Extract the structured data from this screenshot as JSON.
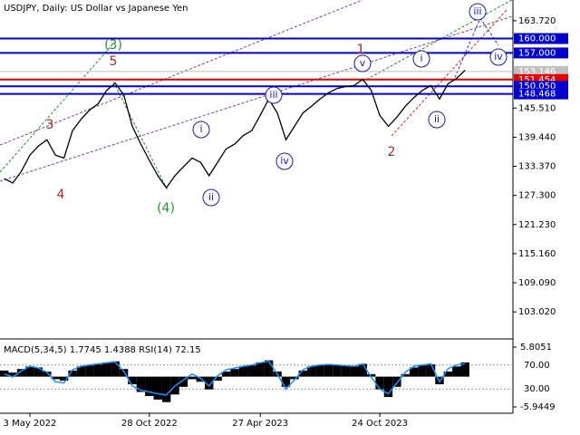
{
  "chart_data": [
    {
      "type": "line",
      "title": "USDJPY, Daily:  US Dollar vs Japanese Yen",
      "color": "#000000",
      "categories": [
        null,
        null,
        null,
        "3 May 2022",
        null,
        null,
        null,
        null,
        null,
        null,
        null,
        null,
        null,
        null,
        null,
        null,
        null,
        "28 Oct 2022",
        null,
        null,
        null,
        null,
        null,
        null,
        null,
        null,
        null,
        null,
        null,
        null,
        "27 Apr 2023",
        null,
        null,
        null,
        null,
        null,
        null,
        null,
        null,
        null,
        null,
        null,
        null,
        null,
        "24 Oct 2023",
        null,
        null,
        null,
        null,
        null,
        null,
        null,
        null,
        null,
        null,
        null,
        null,
        null,
        null,
        null
      ],
      "values": [
        130.8,
        129.9,
        132.3,
        135.7,
        137.6,
        138.9,
        135.7,
        135.1,
        140.8,
        143.2,
        145.1,
        146.4,
        149.2,
        150.7,
        148.3,
        141.7,
        138.0,
        134.6,
        131.4,
        128.9,
        131.4,
        133.3,
        135.1,
        134.2,
        131.4,
        134.2,
        137.0,
        138.0,
        139.8,
        140.8,
        144.0,
        147.4,
        144.5,
        138.9,
        141.7,
        144.5,
        145.9,
        147.4,
        148.7,
        149.6,
        150.0,
        150.2,
        151.5,
        149.2,
        144.0,
        141.7,
        143.6,
        145.9,
        147.7,
        149.2,
        150.2,
        147.4,
        150.6,
        151.7,
        153.4,
        null,
        null,
        null,
        null,
        null
      ],
      "ylim": [
        97.76,
        168.04
      ],
      "yticks": [
        {
          "value": 163.72,
          "label": "163.720"
        },
        {
          "value": 145.51,
          "label": "145.510"
        },
        {
          "value": 139.44,
          "label": "139.440"
        },
        {
          "value": 133.37,
          "label": "133.370"
        },
        {
          "value": 127.3,
          "label": "127.300"
        },
        {
          "value": 121.23,
          "label": "121.230"
        },
        {
          "value": 115.16,
          "label": "115.160"
        },
        {
          "value": 109.09,
          "label": "109.090"
        },
        {
          "value": 103.02,
          "label": "103.020"
        }
      ],
      "levels": [
        {
          "value": 160,
          "label": "160.000",
          "color": "#0000cc"
        },
        {
          "value": 157,
          "label": "157.000",
          "color": "#0000cc"
        },
        {
          "value": 153.146,
          "label": "153.146",
          "color": "#c0c0c0"
        },
        {
          "value": 151.454,
          "label": "151.454",
          "color": "#e00000"
        },
        {
          "value": 150.05,
          "label": "150.050",
          "color": "#0000cc"
        },
        {
          "value": 148.468,
          "label": "148.468",
          "color": "#0000cc"
        }
      ],
      "annotations": [
        {
          "text": "(3)",
          "color": "#2e8b2e"
        },
        {
          "text": "5",
          "color": "#a52a2a"
        },
        {
          "text": "3",
          "color": "#a52a2a"
        },
        {
          "text": "4",
          "color": "#a52a2a"
        },
        {
          "text": "(4)",
          "color": "#2e8b2e"
        },
        {
          "text": "i",
          "color": "#1a1aa6"
        },
        {
          "text": "ii",
          "color": "#1a1aa6"
        },
        {
          "text": "iii",
          "color": "#1a1aa6"
        },
        {
          "text": "iv",
          "color": "#1a1aa6"
        },
        {
          "text": "v",
          "color": "#1a1aa6"
        },
        {
          "text": "1",
          "color": "#a52a2a"
        },
        {
          "text": "2",
          "color": "#a52a2a"
        },
        {
          "text": "i",
          "color": "#1a1aa6"
        },
        {
          "text": "ii",
          "color": "#1a1aa6"
        },
        {
          "text": "iii",
          "color": "#1a1aa6"
        },
        {
          "text": "iv",
          "color": "#1a1aa6"
        }
      ]
    },
    {
      "type": "bar",
      "title": "MACD(5,34,5) 1.7745 1.4388 RSI(14) 72.15",
      "ylim": [
        -5.9449,
        5.8051
      ],
      "yticks": [
        5.8051,
        -5.9449
      ],
      "y2lim": [
        0,
        100
      ],
      "y2ticks": [
        {
          "value": 70,
          "label": "70.00"
        },
        {
          "value": 30,
          "label": "30.00"
        }
      ],
      "series": [
        {
          "color": "#000000",
          "values": [
            1.2,
            0.8,
            1.5,
            2.0,
            1.8,
            1.0,
            -0.5,
            -0.8,
            1.2,
            2.0,
            2.2,
            2.4,
            2.8,
            3.0,
            1.5,
            -1.5,
            -3.0,
            -3.8,
            -4.5,
            -5.0,
            -3.5,
            -2.0,
            -0.5,
            -1.0,
            -2.5,
            -0.8,
            1.0,
            1.5,
            2.0,
            2.2,
            2.8,
            3.2,
            1.0,
            -2.0,
            -0.5,
            1.2,
            2.0,
            2.2,
            2.4,
            2.3,
            2.1,
            2.0,
            2.5,
            0.5,
            -2.5,
            -4.0,
            -2.0,
            0.5,
            1.8,
            2.2,
            2.4,
            -1.5,
            1.0,
            2.0,
            2.8,
            null,
            null,
            null,
            null,
            null
          ]
        },
        {
          "color": "#1e90ff",
          "axis": "y2",
          "values": [
            55,
            50,
            60,
            68,
            65,
            58,
            42,
            40,
            62,
            68,
            70,
            72,
            74,
            75,
            60,
            35,
            28,
            25,
            22,
            20,
            35,
            45,
            55,
            48,
            35,
            52,
            62,
            65,
            68,
            70,
            74,
            76,
            55,
            30,
            45,
            62,
            68,
            70,
            71,
            70,
            69,
            68,
            72,
            50,
            30,
            22,
            40,
            58,
            68,
            70,
            72,
            42,
            64,
            70,
            72.15,
            null,
            null,
            null,
            null,
            null
          ]
        }
      ]
    }
  ]
}
